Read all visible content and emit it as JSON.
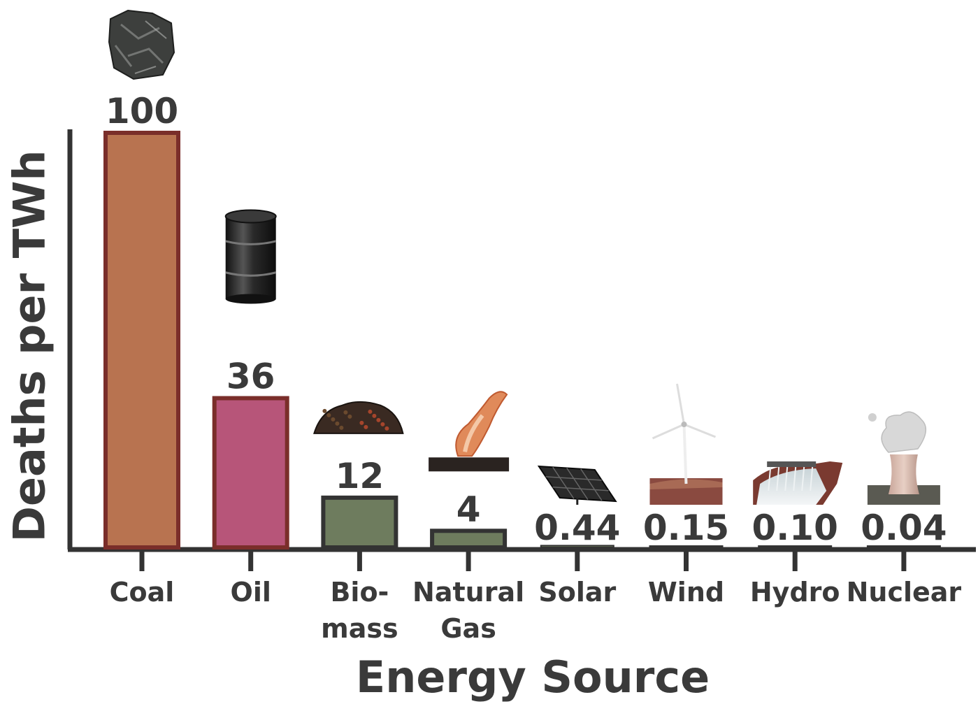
{
  "chart_data": {
    "type": "bar",
    "title": "",
    "xlabel": "Energy Source",
    "ylabel": "Deaths per TWh",
    "ylim": [
      0,
      100
    ],
    "grid": false,
    "legend": "none",
    "categories": [
      {
        "lines": [
          "Coal"
        ]
      },
      {
        "lines": [
          "Oil"
        ]
      },
      {
        "lines": [
          "Bio-",
          "mass"
        ]
      },
      {
        "lines": [
          "Natural",
          "Gas"
        ]
      },
      {
        "lines": [
          "Solar"
        ]
      },
      {
        "lines": [
          "Wind"
        ]
      },
      {
        "lines": [
          "Hydro"
        ]
      },
      {
        "lines": [
          "Nuclear"
        ]
      }
    ],
    "values": [
      100,
      36,
      12,
      4,
      0.44,
      0.15,
      0.1,
      0.04
    ],
    "value_labels": [
      "100",
      "36",
      "12",
      "4",
      "0.44",
      "0.15",
      "0.10",
      "0.04"
    ],
    "colors": {
      "Coal": "#b87350",
      "Oil": "#b75579",
      "Biomass": "#6e7c5e",
      "Natural Gas": "#6e7c5e",
      "Solar": "#6e7c5e",
      "Wind": "#6e7c5e",
      "Hydro": "#6e7c5e",
      "Nuclear": "#6e7c5e"
    },
    "bar_colors": [
      "#b87350",
      "#b75579",
      "#6e7c5e",
      "#6e7c5e",
      "#6e7c5e",
      "#6e7c5e",
      "#6e7c5e",
      "#6e7c5e"
    ],
    "bar_outline_colors": [
      "#7a2e2a",
      "#7a2e2a",
      "#333333",
      "#333333",
      "#333333",
      "#333333",
      "#333333",
      "#333333"
    ],
    "icons": [
      "coal-icon",
      "oil-barrel-icon",
      "biomass-icon",
      "gas-flare-icon",
      "solar-panel-icon",
      "wind-turbine-icon",
      "hydro-dam-icon",
      "nuclear-plant-icon"
    ],
    "axis_color": "#333333",
    "text_color": "#3a3a3a"
  }
}
